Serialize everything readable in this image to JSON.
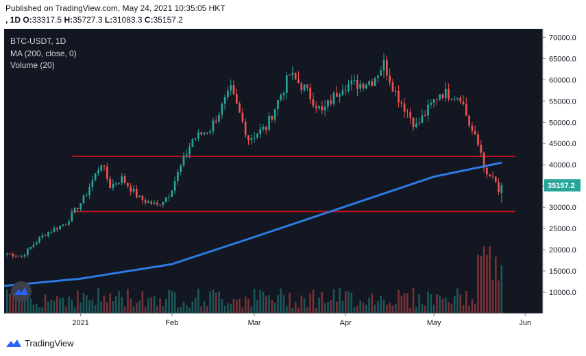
{
  "header": {
    "published": "Published on TradingView.com, May 24, 2021 10:35:05 HKT",
    "interval_prefix": ", 1D",
    "o_label": "O:",
    "o_value": "33317.5",
    "h_label": "H:",
    "h_value": "35727.3",
    "l_label": "L:",
    "l_value": "31083.3",
    "c_label": "C:",
    "c_value": "35157.2"
  },
  "legend": {
    "symbol": "BTC-USDT, 1D",
    "ma": "MA (200, close, 0)",
    "volume": "Volume (20)"
  },
  "footer": {
    "brand": "TradingView"
  },
  "colors": {
    "background": "#131722",
    "up": "#26a69a",
    "down": "#ef5350",
    "ma": "#2c7be5",
    "level_lines": "#c1121f",
    "price_tag": "#26a69a"
  },
  "chart_data": {
    "type": "candlestick",
    "series_name": "BTC-USDT",
    "interval": "1D",
    "ylim": [
      5000,
      72000
    ],
    "y_ticks": [
      "70000.0",
      "65000.0",
      "60000.0",
      "55000.0",
      "50000.0",
      "45000.0",
      "40000.0",
      "35000.0",
      "30000.0",
      "25000.0",
      "20000.0",
      "15000.0",
      "10000.0"
    ],
    "x_ticks": [
      {
        "label": "2021",
        "date": "2021-01-01"
      },
      {
        "label": "Feb",
        "date": "2021-02-01"
      },
      {
        "label": "Mar",
        "date": "2021-03-01"
      },
      {
        "label": "Apr",
        "date": "2021-04-01"
      },
      {
        "label": "May",
        "date": "2021-05-01"
      },
      {
        "label": "Jun",
        "date": "2021-06-01"
      }
    ],
    "x_start": "2020-12-06",
    "x_end": "2021-06-07",
    "first_candle": "2020-12-07",
    "price_points": [
      {
        "date": "2020-12-07",
        "close": 19100
      },
      {
        "date": "2020-12-12",
        "close": 18400
      },
      {
        "date": "2020-12-16",
        "close": 21300
      },
      {
        "date": "2020-12-20",
        "close": 23800
      },
      {
        "date": "2020-12-27",
        "close": 26300
      },
      {
        "date": "2021-01-02",
        "close": 32000
      },
      {
        "date": "2021-01-08",
        "close": 40500
      },
      {
        "date": "2021-01-11",
        "close": 35000
      },
      {
        "date": "2021-01-15",
        "close": 36800
      },
      {
        "date": "2021-01-21",
        "close": 32000
      },
      {
        "date": "2021-01-27",
        "close": 30400
      },
      {
        "date": "2021-01-31",
        "close": 33100
      },
      {
        "date": "2021-02-08",
        "close": 46000
      },
      {
        "date": "2021-02-14",
        "close": 48500
      },
      {
        "date": "2021-02-21",
        "close": 57500
      },
      {
        "date": "2021-02-27",
        "close": 46200
      },
      {
        "date": "2021-03-05",
        "close": 48800
      },
      {
        "date": "2021-03-13",
        "close": 61200
      },
      {
        "date": "2021-03-18",
        "close": 58000
      },
      {
        "date": "2021-03-24",
        "close": 52300
      },
      {
        "date": "2021-03-31",
        "close": 58800
      },
      {
        "date": "2021-04-05",
        "close": 58900
      },
      {
        "date": "2021-04-10",
        "close": 59900
      },
      {
        "date": "2021-04-14",
        "close": 63800
      },
      {
        "date": "2021-04-18",
        "close": 57000
      },
      {
        "date": "2021-04-25",
        "close": 49000
      },
      {
        "date": "2021-05-03",
        "close": 57000
      },
      {
        "date": "2021-05-10",
        "close": 56200
      },
      {
        "date": "2021-05-13",
        "close": 49500
      },
      {
        "date": "2021-05-17",
        "close": 43000
      },
      {
        "date": "2021-05-19",
        "close": 37000
      },
      {
        "date": "2021-05-21",
        "close": 37200
      },
      {
        "date": "2021-05-23",
        "close": 33300
      },
      {
        "date": "2021-05-24",
        "close": 35157.2
      }
    ],
    "last_candle": {
      "date": "2021-05-24",
      "open": 33317.5,
      "high": 35727.3,
      "low": 31083.3,
      "close": 35157.2
    },
    "horizontal_levels": [
      42000,
      29000
    ],
    "ma200_points": [
      {
        "date": "2020-12-06",
        "value": 11500
      },
      {
        "date": "2021-01-01",
        "value": 13200
      },
      {
        "date": "2021-02-01",
        "value": 16600
      },
      {
        "date": "2021-03-01",
        "value": 23000
      },
      {
        "date": "2021-04-01",
        "value": 30200
      },
      {
        "date": "2021-05-01",
        "value": 37200
      },
      {
        "date": "2021-05-24",
        "value": 40500
      }
    ],
    "volume_max_label": "",
    "last_price_label": "35157.2"
  }
}
